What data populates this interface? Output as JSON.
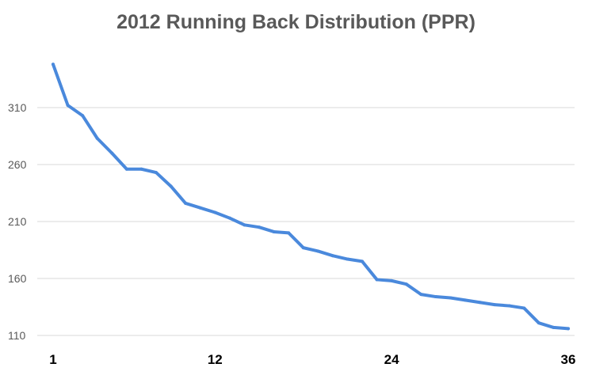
{
  "chart_data": {
    "type": "line",
    "title": "2012 Running Back Distribution (PPR)",
    "xlabel": "",
    "ylabel": "",
    "x_ticks": [
      1,
      12,
      24,
      36
    ],
    "y_ticks": [
      110,
      160,
      210,
      260,
      310
    ],
    "xlim": [
      1,
      36
    ],
    "ylim": [
      110,
      350
    ],
    "grid": true,
    "series": [
      {
        "color": "#4a89dc",
        "x": [
          1,
          2,
          3,
          4,
          5,
          6,
          7,
          8,
          9,
          10,
          11,
          12,
          13,
          14,
          15,
          16,
          17,
          18,
          19,
          20,
          21,
          22,
          23,
          24,
          25,
          26,
          27,
          28,
          29,
          30,
          31,
          32,
          33,
          34,
          35,
          36
        ],
        "values": [
          348,
          312,
          303,
          283,
          270,
          256,
          256,
          253,
          241,
          226,
          222,
          218,
          213,
          207,
          205,
          201,
          200,
          187,
          184,
          180,
          177,
          175,
          159,
          158,
          155,
          146,
          144,
          143,
          141,
          139,
          137,
          136,
          134,
          121,
          117,
          116
        ]
      }
    ]
  }
}
